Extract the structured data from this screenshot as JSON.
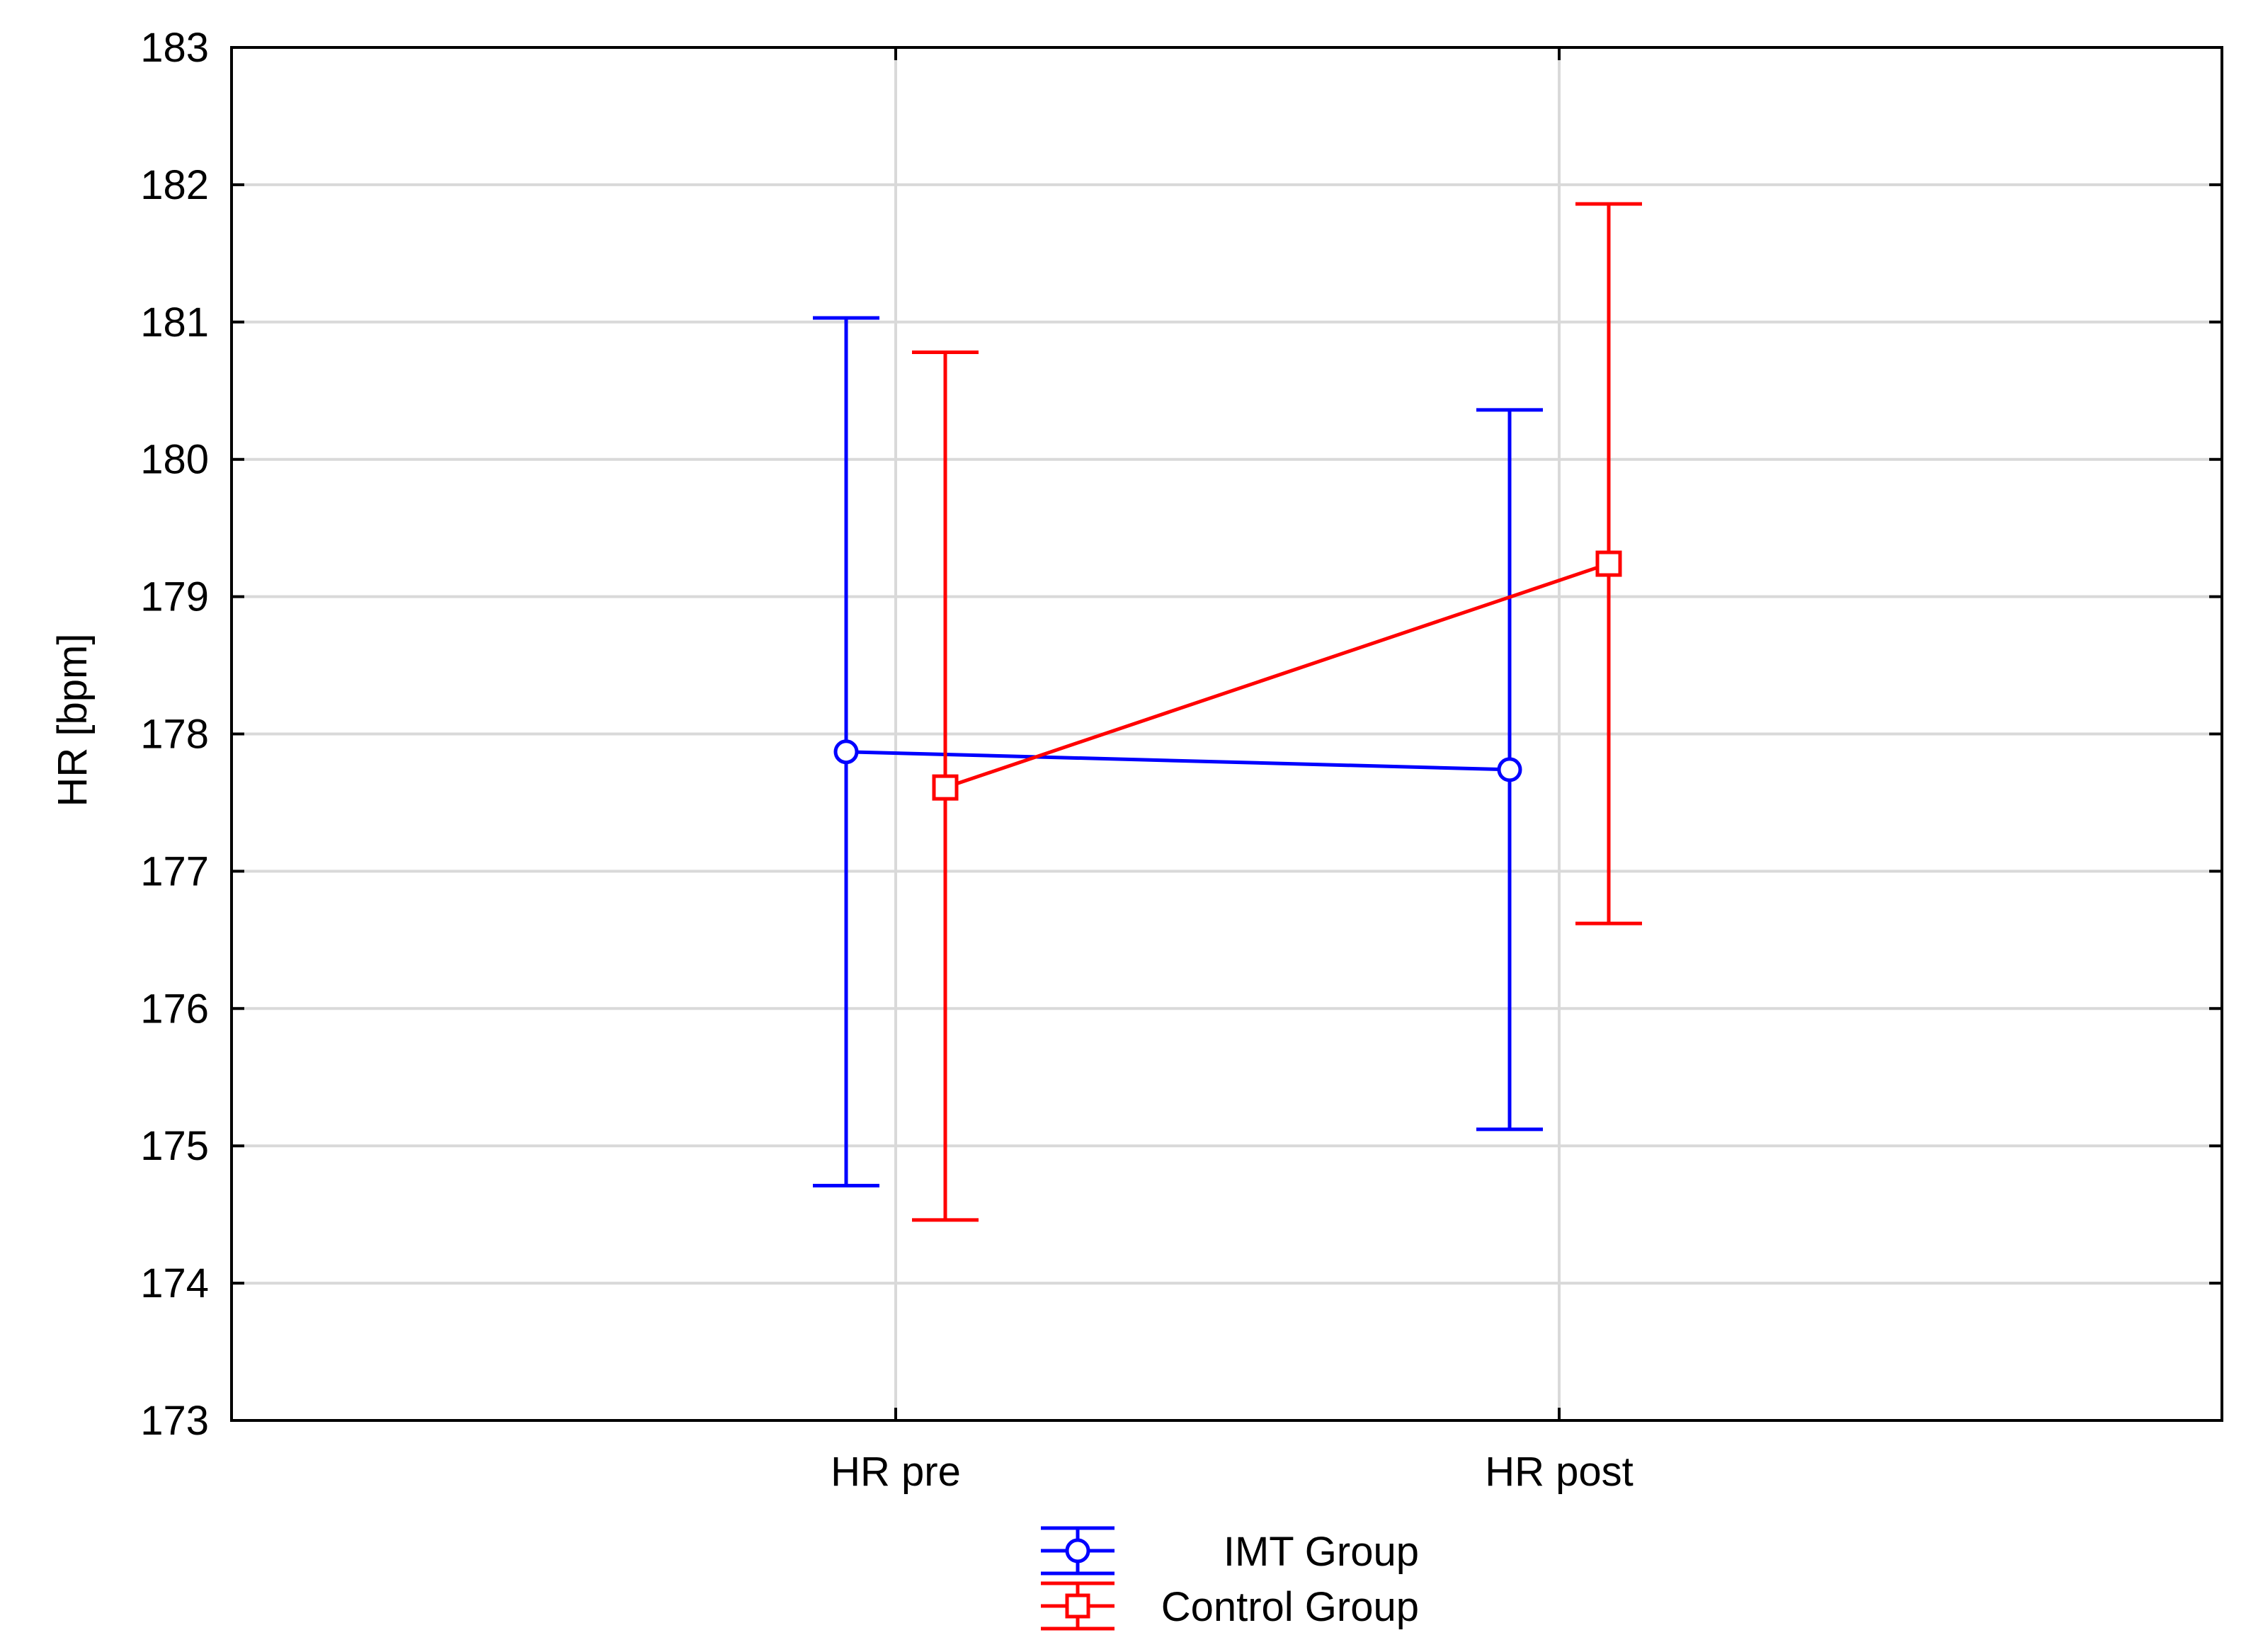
{
  "chart_data": {
    "type": "line",
    "title": "",
    "xlabel": "",
    "ylabel": "HR [bpm]",
    "categories": [
      "HR pre",
      "HR post"
    ],
    "ylim": [
      173,
      183
    ],
    "yticks": [
      173,
      174,
      175,
      176,
      177,
      178,
      179,
      180,
      181,
      182,
      183
    ],
    "grid": true,
    "legend_position": "bottom-center",
    "series": [
      {
        "name": "IMT Group",
        "color": "#0000ff",
        "marker": "circle",
        "values": [
          177.87,
          177.74
        ],
        "error_low": [
          174.71,
          175.12
        ],
        "error_high": [
          181.03,
          180.36
        ]
      },
      {
        "name": "Control Group",
        "color": "#ff0000",
        "marker": "square",
        "values": [
          177.61,
          179.24
        ],
        "error_low": [
          174.46,
          176.62
        ],
        "error_high": [
          180.78,
          181.86
        ]
      }
    ]
  }
}
